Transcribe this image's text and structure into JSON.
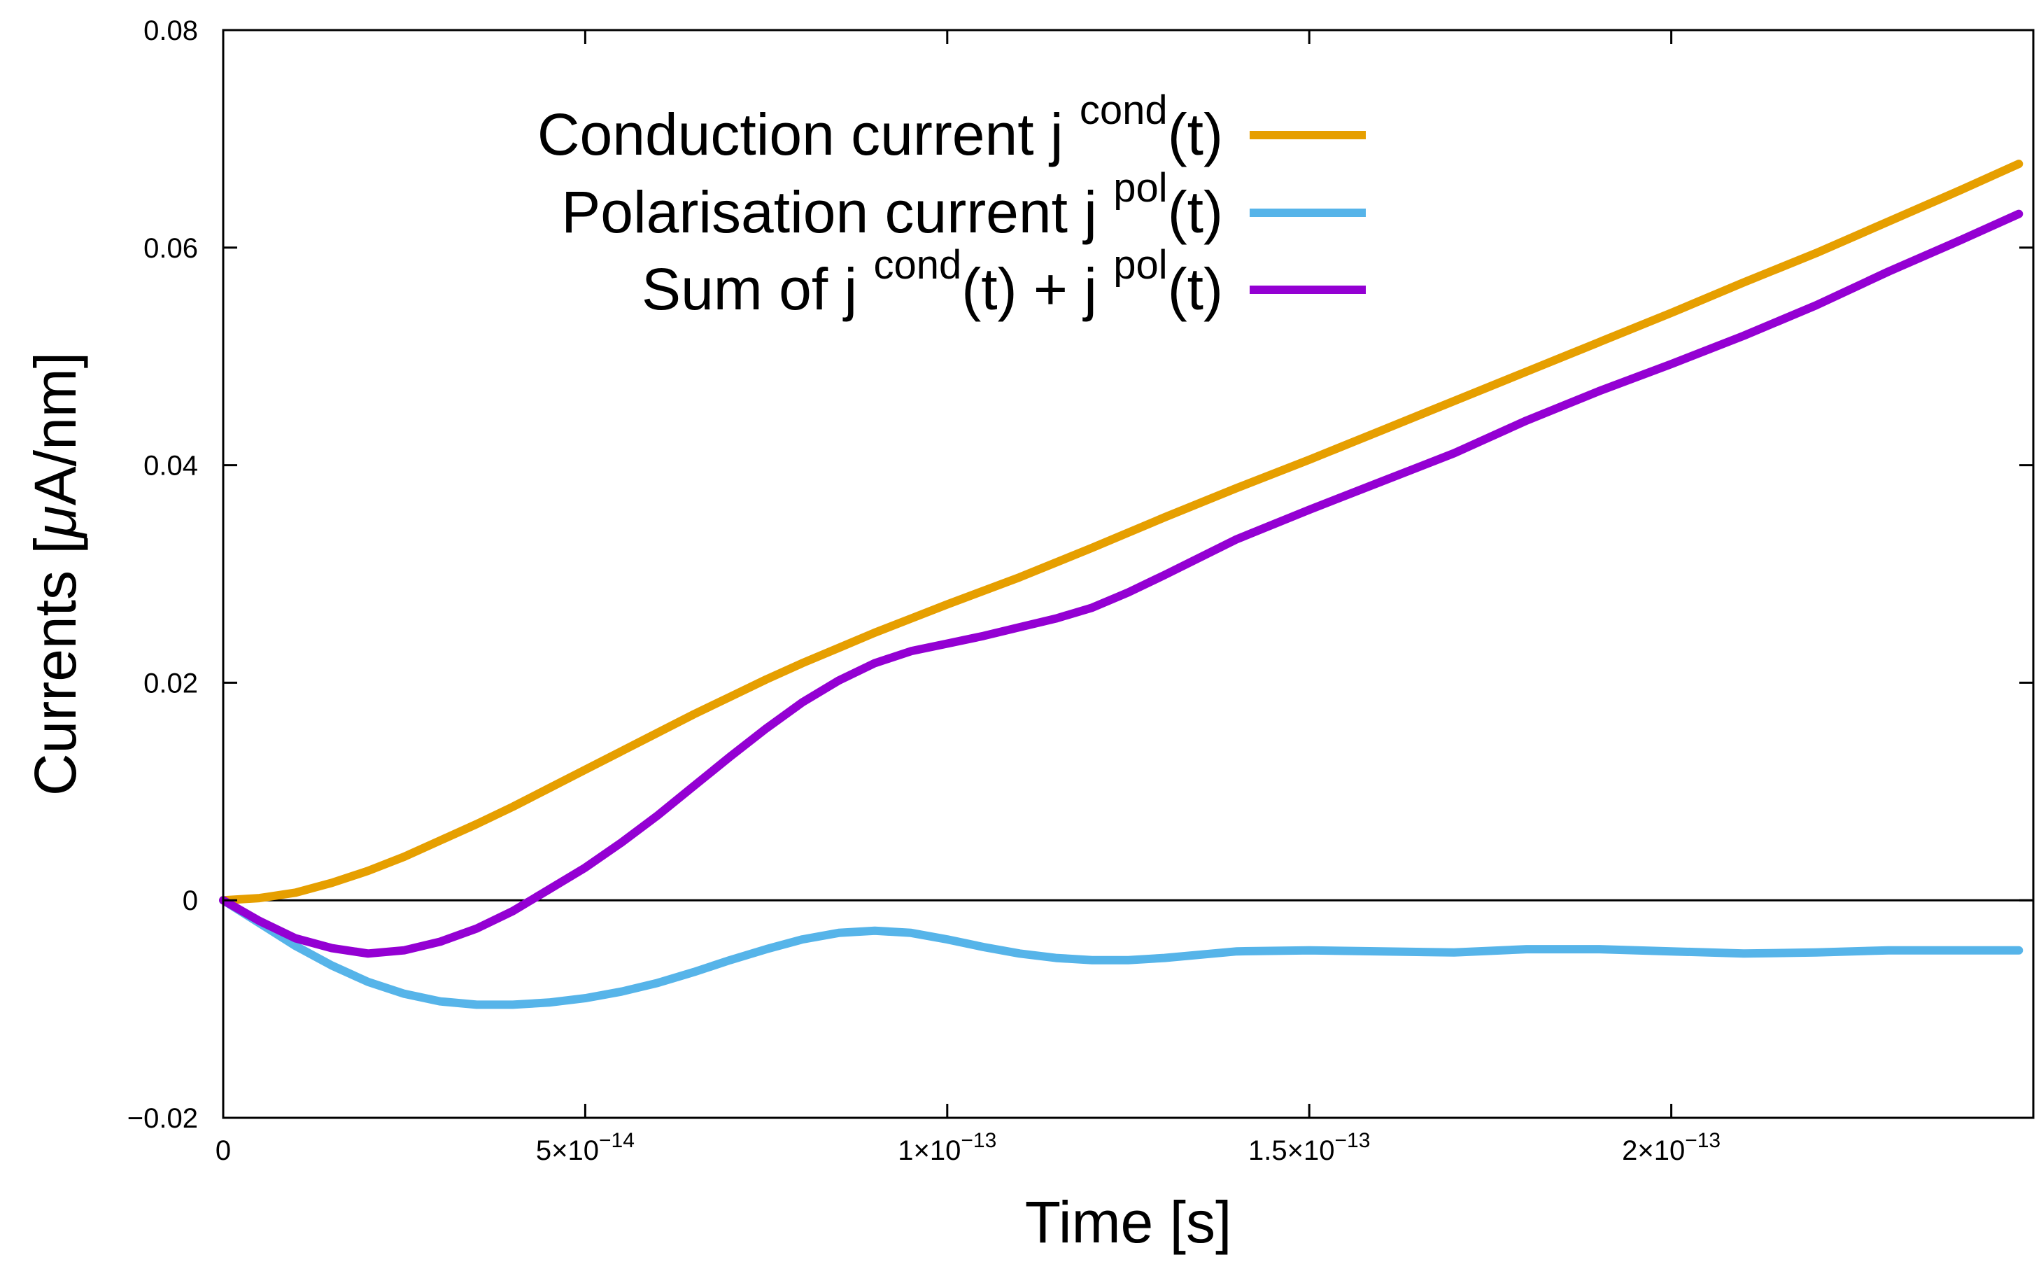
{
  "chart_data": {
    "type": "line",
    "title": "",
    "xlabel": "Time [s]",
    "ylabel_parts": {
      "prefix": "Currents [",
      "mu": "μ",
      "suffix": "A/nm]"
    },
    "xlim": [
      0,
      2.5e-13
    ],
    "ylim": [
      -0.02,
      0.08
    ],
    "grid": false,
    "zero_line": true,
    "legend_position": "top-center",
    "colors": {
      "axis": "#000000",
      "background": "#ffffff"
    },
    "y_ticks": [
      {
        "value": -0.02,
        "label": "−0.02"
      },
      {
        "value": 0,
        "label": "0"
      },
      {
        "value": 0.02,
        "label": "0.02"
      },
      {
        "value": 0.04,
        "label": "0.04"
      },
      {
        "value": 0.06,
        "label": "0.06"
      },
      {
        "value": 0.08,
        "label": "0.08"
      }
    ],
    "x_ticks": [
      {
        "value": 0,
        "mantissa": "0",
        "exponent": ""
      },
      {
        "value": 5e-14,
        "mantissa": "5×10",
        "exponent": "−14"
      },
      {
        "value": 1e-13,
        "mantissa": "1×10",
        "exponent": "−13"
      },
      {
        "value": 1.5e-13,
        "mantissa": "1.5×10",
        "exponent": "−13"
      },
      {
        "value": 2e-13,
        "mantissa": "2×10",
        "exponent": "−13"
      }
    ],
    "series": [
      {
        "name": "Conduction current j cond(t)",
        "legend_parts": [
          {
            "text": "Conduction current j ",
            "sup": false
          },
          {
            "text": "cond",
            "sup": true
          },
          {
            "text": "(t)",
            "sup": false
          }
        ],
        "color": "#E69F00",
        "x": [
          0,
          5e-15,
          1e-14,
          1.5e-14,
          2e-14,
          2.5e-14,
          3e-14,
          3.5e-14,
          4e-14,
          4.5e-14,
          5e-14,
          5.5e-14,
          6e-14,
          6.5e-14,
          7e-14,
          7.5e-14,
          8e-14,
          8.5e-14,
          9e-14,
          9.5e-14,
          1e-13,
          1.1e-13,
          1.2e-13,
          1.3e-13,
          1.4e-13,
          1.5e-13,
          1.6e-13,
          1.7e-13,
          1.8e-13,
          1.9e-13,
          2e-13,
          2.1e-13,
          2.2e-13,
          2.3e-13,
          2.4e-13,
          2.48e-13
        ],
        "y": [
          0,
          0.0002,
          0.0007,
          0.0016,
          0.0027,
          0.004,
          0.0055,
          0.007,
          0.0086,
          0.0103,
          0.012,
          0.0137,
          0.0154,
          0.0171,
          0.0187,
          0.0203,
          0.0218,
          0.0232,
          0.0246,
          0.0259,
          0.0272,
          0.0297,
          0.0324,
          0.0352,
          0.0379,
          0.0405,
          0.0432,
          0.0459,
          0.0486,
          0.0513,
          0.054,
          0.0568,
          0.0595,
          0.0624,
          0.0653,
          0.0677
        ]
      },
      {
        "name": "Polarisation current j pol(t)",
        "legend_parts": [
          {
            "text": "Polarisation current j ",
            "sup": false
          },
          {
            "text": "pol",
            "sup": true
          },
          {
            "text": "(t)",
            "sup": false
          }
        ],
        "color": "#56B4E9",
        "x": [
          0,
          5e-15,
          1e-14,
          1.5e-14,
          2e-14,
          2.5e-14,
          3e-14,
          3.5e-14,
          4e-14,
          4.5e-14,
          5e-14,
          5.5e-14,
          6e-14,
          6.5e-14,
          7e-14,
          7.5e-14,
          8e-14,
          8.5e-14,
          9e-14,
          9.5e-14,
          1e-13,
          1.05e-13,
          1.1e-13,
          1.15e-13,
          1.2e-13,
          1.25e-13,
          1.3e-13,
          1.4e-13,
          1.5e-13,
          1.6e-13,
          1.7e-13,
          1.8e-13,
          1.9e-13,
          2e-13,
          2.1e-13,
          2.2e-13,
          2.3e-13,
          2.4e-13,
          2.48e-13
        ],
        "y": [
          0,
          -0.0021,
          -0.0042,
          -0.006,
          -0.0075,
          -0.0086,
          -0.0093,
          -0.0096,
          -0.0096,
          -0.0094,
          -0.009,
          -0.0084,
          -0.0076,
          -0.0066,
          -0.0055,
          -0.0045,
          -0.0036,
          -0.003,
          -0.0028,
          -0.003,
          -0.0036,
          -0.0043,
          -0.0049,
          -0.0053,
          -0.0055,
          -0.0055,
          -0.0053,
          -0.0047,
          -0.0046,
          -0.0047,
          -0.0048,
          -0.0045,
          -0.0045,
          -0.0047,
          -0.0049,
          -0.0048,
          -0.0046,
          -0.0046,
          -0.0046
        ]
      },
      {
        "name": "Sum of j cond(t) + j pol(t)",
        "legend_parts": [
          {
            "text": "Sum of j ",
            "sup": false
          },
          {
            "text": "cond",
            "sup": true
          },
          {
            "text": "(t) + j ",
            "sup": false
          },
          {
            "text": "pol",
            "sup": true
          },
          {
            "text": "(t)",
            "sup": false
          }
        ],
        "color": "#9400D3",
        "x": [
          0,
          5e-15,
          1e-14,
          1.5e-14,
          2e-14,
          2.5e-14,
          3e-14,
          3.5e-14,
          4e-14,
          4.5e-14,
          5e-14,
          5.5e-14,
          6e-14,
          6.5e-14,
          7e-14,
          7.5e-14,
          8e-14,
          8.5e-14,
          9e-14,
          9.5e-14,
          1e-13,
          1.05e-13,
          1.1e-13,
          1.15e-13,
          1.2e-13,
          1.25e-13,
          1.3e-13,
          1.4e-13,
          1.5e-13,
          1.6e-13,
          1.7e-13,
          1.8e-13,
          1.9e-13,
          2e-13,
          2.1e-13,
          2.2e-13,
          2.3e-13,
          2.4e-13,
          2.48e-13
        ],
        "y": [
          0,
          -0.0019,
          -0.0035,
          -0.0044,
          -0.0049,
          -0.0046,
          -0.0038,
          -0.0026,
          -0.001,
          0.001,
          0.003,
          0.0053,
          0.0078,
          0.0105,
          0.0132,
          0.0158,
          0.0182,
          0.0202,
          0.0218,
          0.0229,
          0.0236,
          0.0243,
          0.0251,
          0.0259,
          0.0269,
          0.0283,
          0.0299,
          0.0332,
          0.0359,
          0.0385,
          0.0411,
          0.0441,
          0.0468,
          0.0493,
          0.0519,
          0.0547,
          0.0578,
          0.0607,
          0.0631
        ]
      }
    ]
  }
}
